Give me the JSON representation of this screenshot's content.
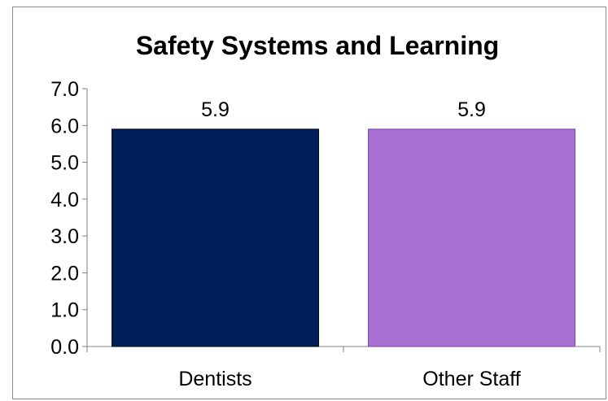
{
  "chart_data": {
    "type": "bar",
    "title": "Safety Systems and Learning",
    "categories": [
      "Dentists",
      "Other Staff"
    ],
    "values": [
      5.9,
      5.9
    ],
    "data_labels": [
      "5.9",
      "5.9"
    ],
    "colors": [
      "#00205b",
      "#a970d4"
    ],
    "ylim": [
      0,
      7
    ],
    "yticks": [
      "0.0",
      "1.0",
      "2.0",
      "3.0",
      "4.0",
      "5.0",
      "6.0",
      "7.0"
    ],
    "grid": false,
    "legend": "none"
  }
}
